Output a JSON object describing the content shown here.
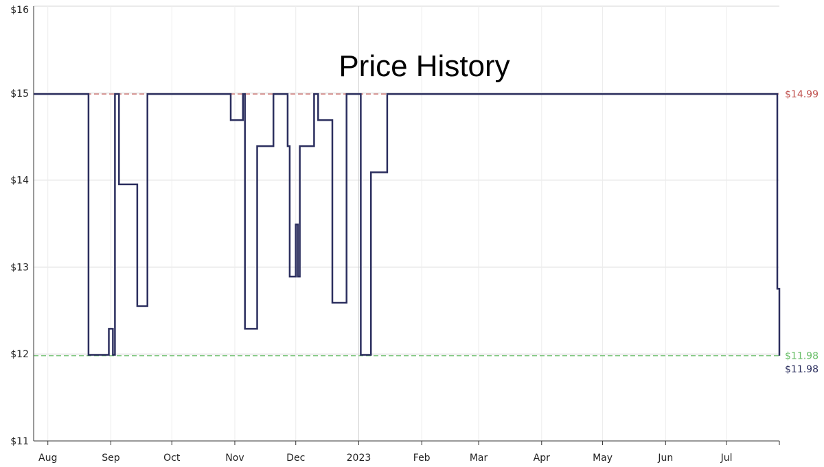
{
  "chart_data": {
    "type": "line",
    "title": "Price History",
    "xlabel": "",
    "ylabel": "",
    "ylim": [
      11,
      16
    ],
    "xlim": [
      "2022-07-25",
      "2023-07-27"
    ],
    "y_ticks": [
      {
        "value": 11,
        "label": "$11"
      },
      {
        "value": 12,
        "label": "$12"
      },
      {
        "value": 13,
        "label": "$13"
      },
      {
        "value": 14,
        "label": "$14"
      },
      {
        "value": 15,
        "label": "$15"
      },
      {
        "value": 16,
        "label": "$16"
      }
    ],
    "x_ticks": [
      {
        "date": "2022-08-01",
        "label": "Aug"
      },
      {
        "date": "2022-09-01",
        "label": "Sep"
      },
      {
        "date": "2022-10-01",
        "label": "Oct"
      },
      {
        "date": "2022-11-01",
        "label": "Nov"
      },
      {
        "date": "2022-12-01",
        "label": "Dec"
      },
      {
        "date": "2023-01-01",
        "label": "2023"
      },
      {
        "date": "2023-02-01",
        "label": "Feb"
      },
      {
        "date": "2023-03-01",
        "label": "Mar"
      },
      {
        "date": "2023-04-01",
        "label": "Apr"
      },
      {
        "date": "2023-05-01",
        "label": "May"
      },
      {
        "date": "2023-06-01",
        "label": "Jun"
      },
      {
        "date": "2023-07-01",
        "label": "Jul"
      }
    ],
    "grid": true,
    "line_shape": "step",
    "series": [
      {
        "color": "#2b2e5e",
        "points": [
          [
            "2022-07-25",
            14.99
          ],
          [
            "2022-08-21",
            11.99
          ],
          [
            "2022-08-31",
            12.29
          ],
          [
            "2022-09-02",
            11.99
          ],
          [
            "2022-09-03",
            14.99
          ],
          [
            "2022-09-05",
            13.95
          ],
          [
            "2022-09-14",
            12.55
          ],
          [
            "2022-09-19",
            14.99
          ],
          [
            "2022-10-30",
            14.69
          ],
          [
            "2022-11-05",
            14.99
          ],
          [
            "2022-11-06",
            12.29
          ],
          [
            "2022-11-12",
            14.39
          ],
          [
            "2022-11-20",
            14.99
          ],
          [
            "2022-11-27",
            14.39
          ],
          [
            "2022-11-28",
            12.89
          ],
          [
            "2022-12-01",
            13.49
          ],
          [
            "2022-12-02",
            12.89
          ],
          [
            "2022-12-03",
            14.39
          ],
          [
            "2022-12-10",
            14.99
          ],
          [
            "2022-12-12",
            14.69
          ],
          [
            "2022-12-19",
            12.59
          ],
          [
            "2022-12-26",
            14.99
          ],
          [
            "2023-01-02",
            11.99
          ],
          [
            "2023-01-07",
            14.09
          ],
          [
            "2023-01-15",
            14.99
          ],
          [
            "2023-07-26",
            12.75
          ],
          [
            "2023-07-27",
            11.98
          ]
        ]
      }
    ],
    "reference_lines": [
      {
        "value": 14.99,
        "label": "$14.99",
        "color": "#c0504d"
      },
      {
        "value": 11.98,
        "label": "$11.98",
        "color": "#6abf69"
      }
    ],
    "last_value_label": {
      "value": 11.98,
      "label": "$11.98",
      "color": "#2b2e5e"
    }
  }
}
